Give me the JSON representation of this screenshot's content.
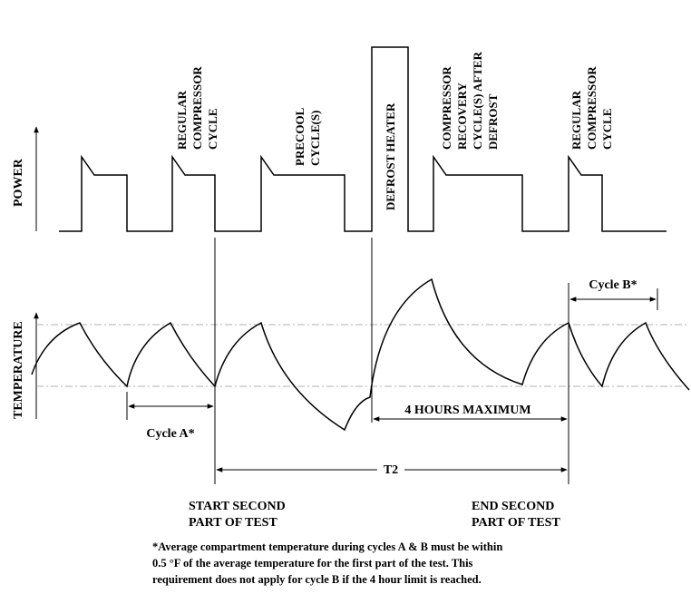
{
  "axes": {
    "power": "POWER",
    "temperature": "TEMPERATURE"
  },
  "cycle_labels": {
    "regular_compressor_1": [
      "REGULAR",
      "COMPRESSOR",
      "CYCLE"
    ],
    "precool": [
      "PRECOOL",
      "CYCLE(S)"
    ],
    "defrost_heater": "DEFROST HEATER",
    "compressor_recovery": [
      "COMPRESSOR",
      "RECOVERY",
      "CYCLE(S) AFTER",
      "DEFROST"
    ],
    "regular_compressor_2": [
      "REGULAR",
      "COMPRESSOR",
      "CYCLE"
    ]
  },
  "dimensions": {
    "cycle_a": "Cycle A*",
    "cycle_b": "Cycle B*",
    "four_hours": "4 HOURS MAXIMUM",
    "t2": "T2"
  },
  "markers": {
    "start_second": [
      "START SECOND",
      "PART OF TEST"
    ],
    "end_second": [
      "END SECOND",
      "PART OF TEST"
    ]
  },
  "footnote": [
    "*Average compartment temperature during cycles A & B must be within",
    "0.5 °F  of  the average temperature for the first part of the test. This",
    "requirement does not apply for cycle B if the 4 hour limit is reached."
  ]
}
